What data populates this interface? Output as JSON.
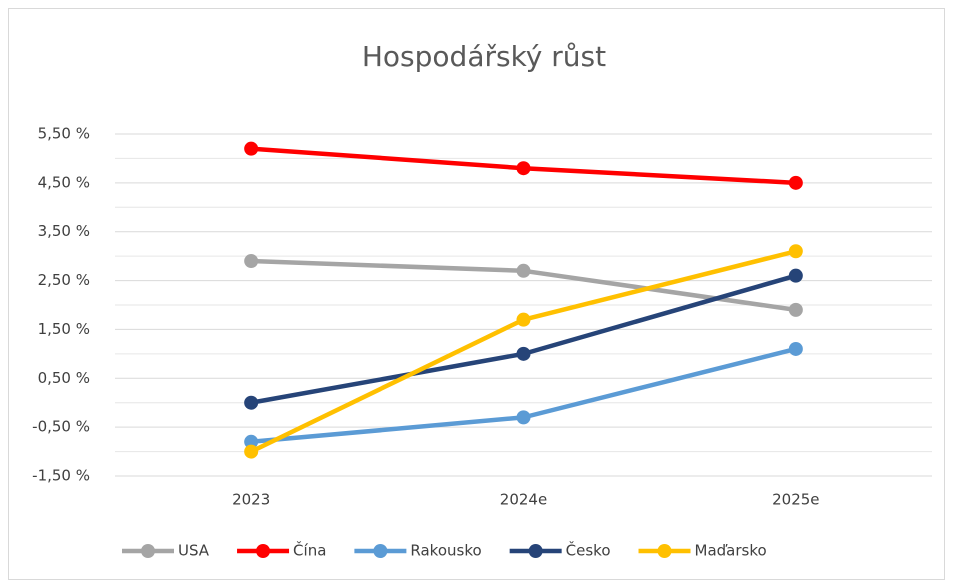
{
  "chart_data": {
    "type": "line",
    "title": "Hospodářský růst",
    "categories": [
      "2023",
      "2024e",
      "2025e"
    ],
    "series": [
      {
        "name": "USA",
        "color": "#a5a5a5",
        "values": [
          2.9,
          2.7,
          1.9
        ]
      },
      {
        "name": "Čína",
        "color": "#ff0000",
        "values": [
          5.2,
          4.8,
          4.5
        ]
      },
      {
        "name": "Rakousko",
        "color": "#5b9bd5",
        "values": [
          -0.8,
          -0.3,
          1.1
        ]
      },
      {
        "name": "Česko",
        "color": "#264478",
        "values": [
          0.0,
          1.0,
          2.6
        ]
      },
      {
        "name": "Maďarsko",
        "color": "#ffc000",
        "values": [
          -1.0,
          1.7,
          3.1
        ]
      }
    ],
    "ylim": [
      -1.5,
      5.5
    ],
    "yticks": [
      {
        "value": -1.5,
        "label": "-1,50 %"
      },
      {
        "value": -0.5,
        "label": "-0,50 %"
      },
      {
        "value": 0.5,
        "label": "0,50 %"
      },
      {
        "value": 1.5,
        "label": "1,50 %"
      },
      {
        "value": 2.5,
        "label": "2,50 %"
      },
      {
        "value": 3.5,
        "label": "3,50 %"
      },
      {
        "value": 4.5,
        "label": "4,50 %"
      },
      {
        "value": 5.5,
        "label": "5,50 %"
      }
    ],
    "minor_yticks": [
      -1,
      0,
      1,
      2,
      3,
      4,
      5
    ],
    "grid": true,
    "legend": "bottom"
  }
}
